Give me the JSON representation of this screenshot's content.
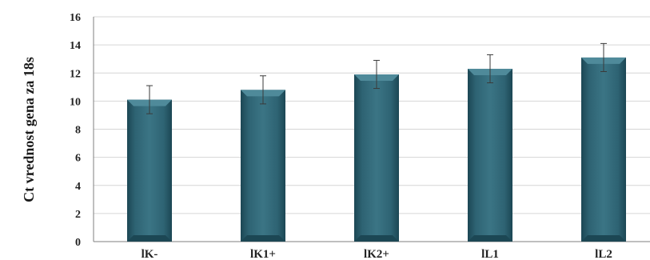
{
  "chart_data": {
    "type": "bar",
    "title": "",
    "xlabel": "",
    "ylabel": "Ct vrednost gena za 18s",
    "categories": [
      "lK-",
      "lK1+",
      "lK2+",
      "lL1",
      "lL2"
    ],
    "values": [
      10.1,
      10.8,
      11.9,
      12.3,
      13.1
    ],
    "error": [
      1.0,
      1.0,
      1.0,
      1.0,
      1.0
    ],
    "ylim": [
      0,
      16
    ],
    "yticks": [
      0,
      2,
      4,
      6,
      8,
      10,
      12,
      14,
      16
    ],
    "grid": true,
    "legend": "none",
    "colors": {
      "bar": "#2e6373",
      "bar_light": "#4f8a9a",
      "bar_dark": "#1c4754"
    }
  }
}
